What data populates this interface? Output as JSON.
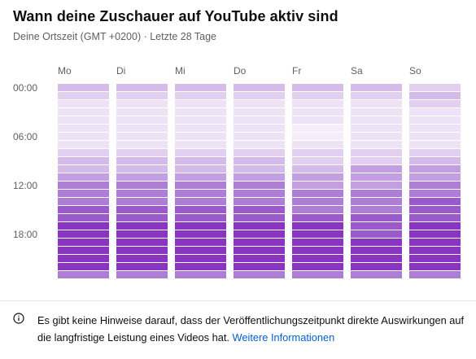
{
  "title": "Wann deine Zuschauer auf YouTube aktiv sind",
  "subtitle": "Deine Ortszeit (GMT +0200) · Letzte 28 Tage",
  "icons": {
    "info": "info-icon"
  },
  "colors": {
    "level_0": "#f5eef9",
    "level_1": "#eee2f6",
    "level_2": "#e3d0f0",
    "level_3": "#d5bbe9",
    "level_4": "#c39ee0",
    "level_5": "#ae7dd6",
    "level_6": "#9b5acb",
    "level_7": "#8a35c2",
    "link": "#065fd4"
  },
  "chart_data": {
    "type": "heatmap",
    "days": [
      "Mo",
      "Di",
      "Mi",
      "Do",
      "Fr",
      "Sa",
      "So"
    ],
    "time_labels": [
      "00:00",
      "06:00",
      "12:00",
      "18:00"
    ],
    "hours_per_day": 24,
    "levels": [
      [
        3,
        2,
        1,
        1,
        1,
        1,
        1,
        1,
        2,
        3,
        3,
        4,
        5,
        5,
        5,
        6,
        6,
        7,
        7,
        7,
        7,
        7,
        7,
        5
      ],
      [
        3,
        2,
        1,
        1,
        1,
        1,
        1,
        1,
        2,
        3,
        3,
        4,
        5,
        5,
        5,
        6,
        6,
        7,
        7,
        7,
        7,
        7,
        7,
        5
      ],
      [
        3,
        2,
        1,
        1,
        1,
        1,
        1,
        1,
        2,
        3,
        3,
        4,
        5,
        5,
        5,
        6,
        6,
        7,
        7,
        7,
        7,
        7,
        7,
        5
      ],
      [
        3,
        2,
        1,
        1,
        1,
        1,
        1,
        1,
        2,
        3,
        3,
        4,
        5,
        5,
        5,
        6,
        6,
        7,
        7,
        7,
        7,
        7,
        7,
        5
      ],
      [
        3,
        2,
        1,
        1,
        1,
        0,
        0,
        1,
        2,
        2,
        3,
        4,
        4,
        5,
        5,
        5,
        6,
        7,
        7,
        7,
        7,
        7,
        7,
        5
      ],
      [
        3,
        2,
        1,
        1,
        1,
        1,
        1,
        1,
        2,
        2,
        4,
        4,
        4,
        5,
        5,
        5,
        6,
        6,
        6,
        7,
        7,
        7,
        7,
        5
      ],
      [
        2,
        3,
        2,
        1,
        1,
        1,
        1,
        1,
        2,
        3,
        4,
        4,
        5,
        5,
        6,
        6,
        6,
        7,
        7,
        7,
        7,
        7,
        7,
        5
      ]
    ]
  },
  "info": {
    "text": "Es gibt keine Hinweise darauf, dass der Veröffentlichungszeitpunkt direkte Auswirkungen auf die langfristige Leistung eines Videos hat.",
    "link_text": "Weitere Informationen"
  }
}
